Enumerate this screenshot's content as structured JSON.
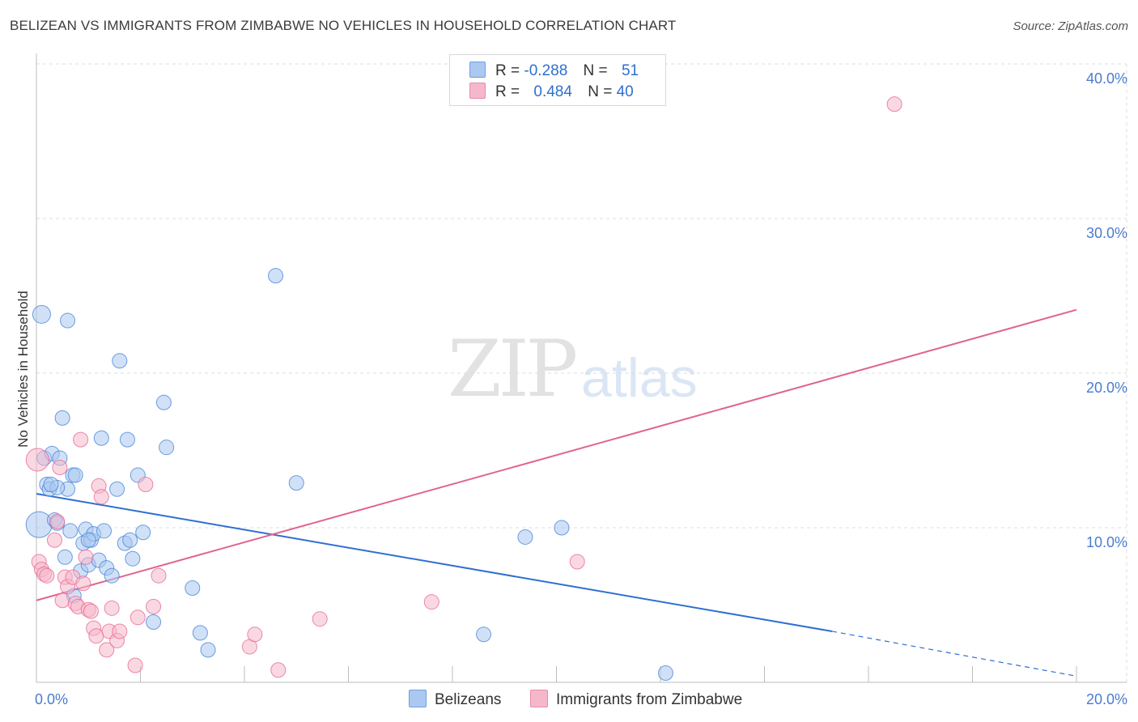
{
  "title": "BELIZEAN VS IMMIGRANTS FROM ZIMBABWE NO VEHICLES IN HOUSEHOLD CORRELATION CHART",
  "source": "Source: ZipAtlas.com",
  "watermark": {
    "left": "ZIP",
    "right": "atlas"
  },
  "legend": {
    "rows": [
      {
        "r_label": "R =",
        "r_value": "-0.288",
        "n_label": "N =",
        "n_value": "51",
        "color": "#aac8f0"
      },
      {
        "r_label": "R =",
        "r_value": "0.484",
        "n_label": "N =",
        "n_value": "40",
        "color": "#f5b8cb"
      }
    ]
  },
  "bottom_legend": [
    {
      "label": "Belizeans",
      "color": "#aac8f0"
    },
    {
      "label": "Immigrants from Zimbabwe",
      "color": "#f5b8cb"
    }
  ],
  "chart_data": {
    "type": "scatter",
    "title": "BELIZEAN VS IMMIGRANTS FROM ZIMBABWE NO VEHICLES IN HOUSEHOLD CORRELATION CHART",
    "xlabel": "",
    "ylabel": "No Vehicles in Household",
    "xlim": [
      0,
      20
    ],
    "ylim": [
      0,
      40
    ],
    "x_tick_labels": [
      "0.0%",
      "20.0%"
    ],
    "y_tick_labels": [
      "10.0%",
      "20.0%",
      "30.0%",
      "40.0%"
    ],
    "y_ticks": [
      10,
      20,
      30,
      40
    ],
    "grid": true,
    "legend_position": "top-center",
    "series": [
      {
        "name": "Belizeans",
        "color": "#4a86d8",
        "fill": "#aac8f0",
        "points": [
          [
            0.05,
            10.2
          ],
          [
            0.1,
            23.8
          ],
          [
            0.15,
            14.5
          ],
          [
            0.2,
            12.8
          ],
          [
            0.25,
            12.5
          ],
          [
            0.3,
            14.8
          ],
          [
            0.35,
            10.5
          ],
          [
            0.4,
            10.3
          ],
          [
            0.45,
            14.5
          ],
          [
            0.5,
            17.1
          ],
          [
            0.55,
            8.1
          ],
          [
            0.6,
            23.4
          ],
          [
            0.65,
            9.8
          ],
          [
            0.7,
            13.4
          ],
          [
            0.72,
            5.6
          ],
          [
            0.75,
            13.4
          ],
          [
            0.85,
            7.2
          ],
          [
            0.9,
            9.0
          ],
          [
            0.95,
            9.9
          ],
          [
            1.0,
            7.6
          ],
          [
            1.05,
            9.2
          ],
          [
            1.1,
            9.6
          ],
          [
            1.2,
            7.9
          ],
          [
            1.25,
            15.8
          ],
          [
            1.3,
            9.8
          ],
          [
            1.35,
            7.4
          ],
          [
            1.45,
            6.9
          ],
          [
            1.55,
            12.5
          ],
          [
            1.6,
            20.8
          ],
          [
            1.7,
            9.0
          ],
          [
            1.75,
            15.7
          ],
          [
            1.8,
            9.2
          ],
          [
            1.85,
            8.0
          ],
          [
            1.95,
            13.4
          ],
          [
            2.05,
            9.7
          ],
          [
            2.25,
            3.9
          ],
          [
            2.45,
            18.1
          ],
          [
            2.5,
            15.2
          ],
          [
            3.0,
            6.1
          ],
          [
            3.15,
            3.2
          ],
          [
            3.3,
            2.1
          ],
          [
            4.6,
            26.3
          ],
          [
            5.0,
            12.9
          ],
          [
            8.6,
            3.1
          ],
          [
            9.4,
            9.4
          ],
          [
            10.1,
            10.0
          ],
          [
            12.1,
            0.6
          ],
          [
            0.6,
            12.5
          ],
          [
            0.4,
            12.6
          ],
          [
            1.0,
            9.2
          ],
          [
            0.28,
            12.8
          ]
        ]
      },
      {
        "name": "Immigrants from Zimbabwe",
        "color": "#e86a96",
        "fill": "#f5b8cb",
        "points": [
          [
            0.02,
            14.4
          ],
          [
            0.05,
            7.8
          ],
          [
            0.1,
            7.3
          ],
          [
            0.15,
            7.0
          ],
          [
            0.2,
            6.9
          ],
          [
            0.35,
            9.2
          ],
          [
            0.4,
            10.4
          ],
          [
            0.45,
            13.9
          ],
          [
            0.5,
            5.3
          ],
          [
            0.55,
            6.8
          ],
          [
            0.6,
            6.2
          ],
          [
            0.7,
            6.8
          ],
          [
            0.75,
            5.1
          ],
          [
            0.8,
            4.9
          ],
          [
            0.85,
            15.7
          ],
          [
            0.9,
            6.4
          ],
          [
            0.95,
            8.1
          ],
          [
            1.0,
            4.7
          ],
          [
            1.05,
            4.6
          ],
          [
            1.1,
            3.5
          ],
          [
            1.15,
            3.0
          ],
          [
            1.2,
            12.7
          ],
          [
            1.25,
            12.0
          ],
          [
            1.35,
            2.1
          ],
          [
            1.4,
            3.3
          ],
          [
            1.45,
            4.8
          ],
          [
            1.55,
            2.7
          ],
          [
            1.6,
            3.3
          ],
          [
            1.9,
            1.1
          ],
          [
            1.95,
            4.2
          ],
          [
            2.1,
            12.8
          ],
          [
            2.25,
            4.9
          ],
          [
            2.35,
            6.9
          ],
          [
            4.1,
            2.3
          ],
          [
            4.2,
            3.1
          ],
          [
            4.65,
            0.8
          ],
          [
            5.45,
            4.1
          ],
          [
            7.6,
            5.2
          ],
          [
            10.4,
            7.8
          ],
          [
            16.5,
            37.4
          ]
        ]
      }
    ],
    "trend_lines": [
      {
        "series": "Belizeans",
        "from": [
          0,
          12.2
        ],
        "to_solid": [
          15.3,
          3.3
        ],
        "to_dashed": [
          20,
          0.4
        ]
      },
      {
        "series": "Immigrants from Zimbabwe",
        "from": [
          0,
          5.3
        ],
        "to": [
          20,
          24.1
        ]
      }
    ]
  }
}
